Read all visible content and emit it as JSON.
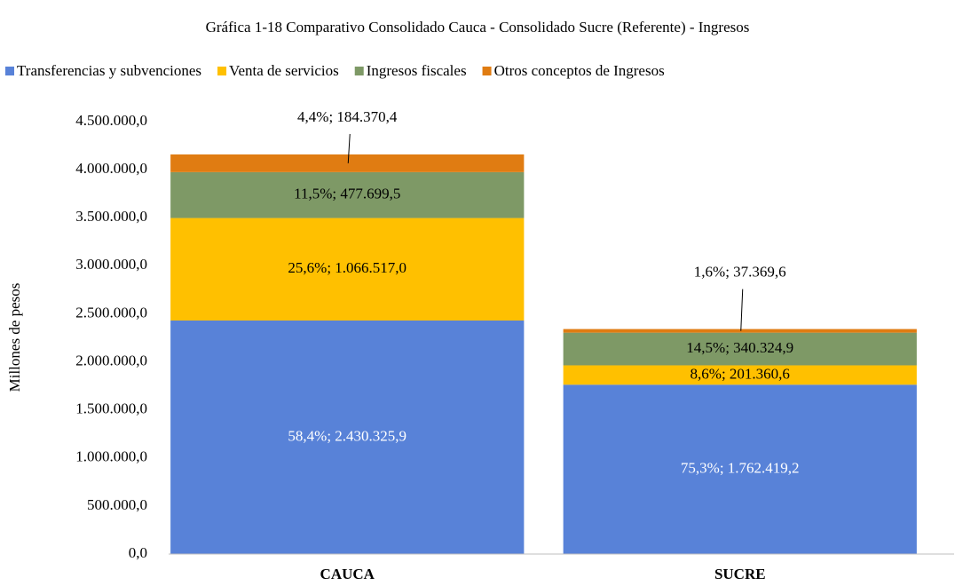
{
  "chart_data": {
    "type": "stacked_bar",
    "title": "Gráfica 1-18 Comparativo Consolidado Cauca - Consolidado Sucre (Referente) - Ingresos",
    "y_axis_label": "Millones  de pesos",
    "categories": [
      "CAUCA",
      "SUCRE"
    ],
    "series": [
      {
        "name": "Transferencias y subvenciones",
        "color": "#5882d8",
        "values": [
          2430325.9,
          1762419.2
        ],
        "value_labels": [
          "58,4%; 2.430.325,9",
          "75,3%; 1.762.419,2"
        ]
      },
      {
        "name": "Venta de servicios",
        "color": "#ffc000",
        "values": [
          1066517.0,
          201360.6
        ],
        "value_labels": [
          "25,6%; 1.066.517,0",
          "8,6%; 201.360,6"
        ]
      },
      {
        "name": "Ingresos fiscales",
        "color": "#7e9966",
        "values": [
          477699.5,
          340324.9
        ],
        "value_labels": [
          "11,5%; 477.699,5",
          "14,5%; 340.324,9"
        ]
      },
      {
        "name": "Otros conceptos de Ingresos",
        "color": "#e07c12",
        "values": [
          184370.4,
          37369.6
        ],
        "value_labels": [
          "4,4%; 184.370,4",
          "1,6%; 37.369,6"
        ]
      }
    ],
    "ylim": [
      0,
      4500000
    ],
    "yticks": [
      {
        "value": 0,
        "label": "0,0"
      },
      {
        "value": 500000,
        "label": "500.000,0"
      },
      {
        "value": 1000000,
        "label": "1.000.000,0"
      },
      {
        "value": 1500000,
        "label": "1.500.000,0"
      },
      {
        "value": 2000000,
        "label": "2.000.000,0"
      },
      {
        "value": 2500000,
        "label": "2.500.000,0"
      },
      {
        "value": 3000000,
        "label": "3.000.000,0"
      },
      {
        "value": 3500000,
        "label": "3.500.000,0"
      },
      {
        "value": 4000000,
        "label": "4.000.000,0"
      },
      {
        "value": 4500000,
        "label": "4.500.000,0"
      }
    ],
    "legend": "top",
    "grid": false
  }
}
